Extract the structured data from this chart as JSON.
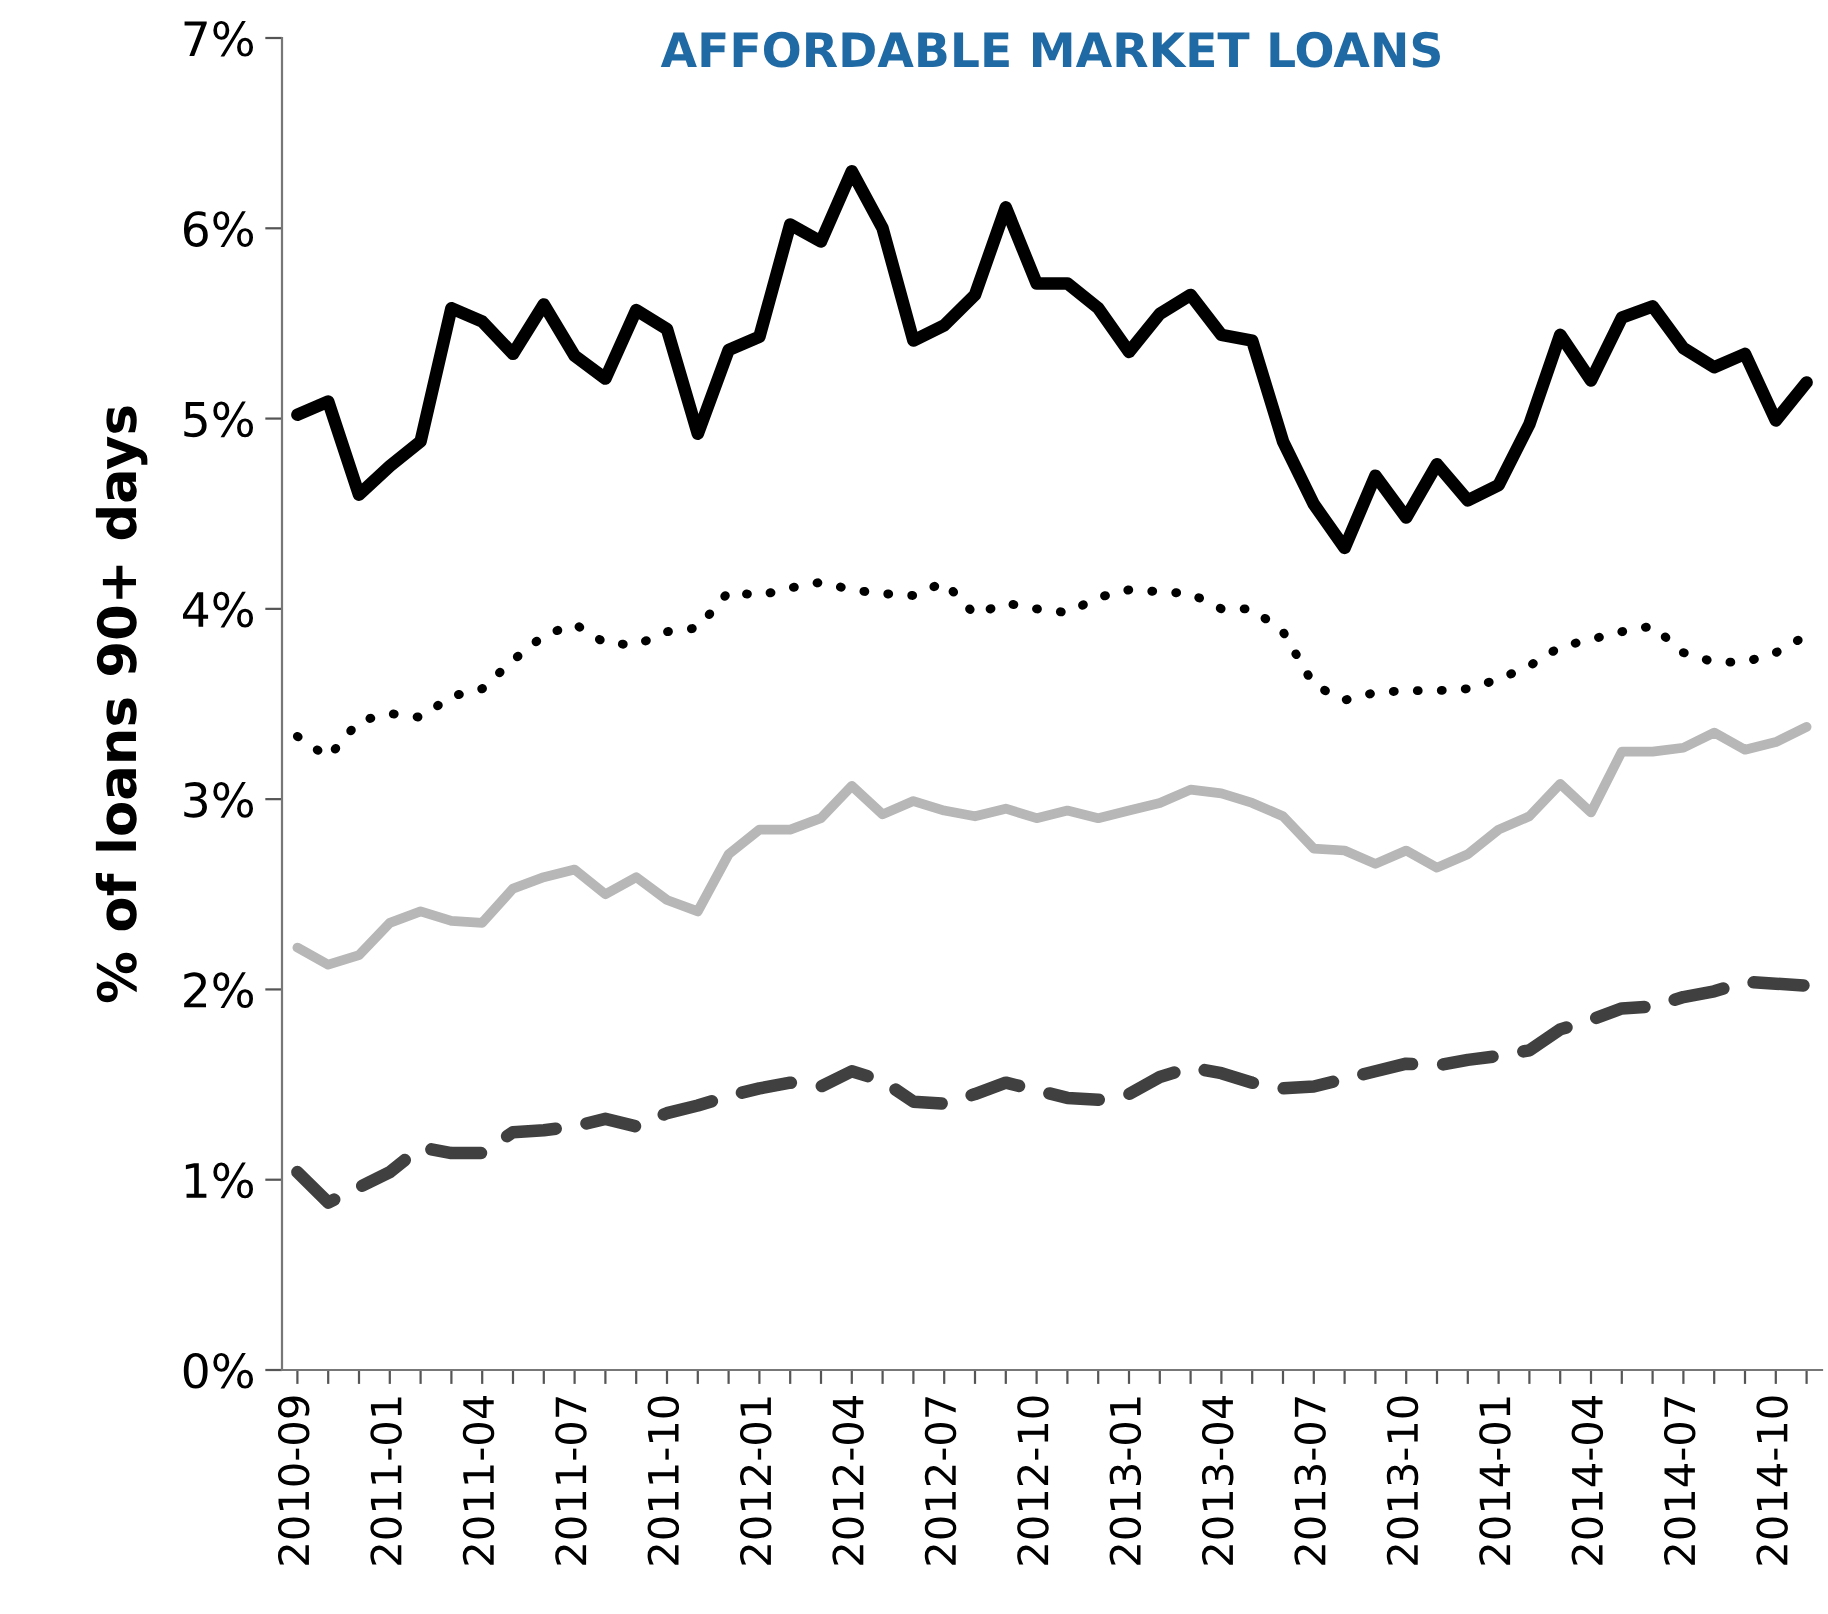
{
  "chart_data": {
    "type": "line",
    "title": "AFFORDABLE MARKET LOANS",
    "ylabel": "% of loans 90+ days",
    "categories": [
      "2010-09",
      null,
      null,
      "2011-01",
      null,
      null,
      "2011-04",
      null,
      null,
      "2011-07",
      null,
      null,
      "2011-10",
      null,
      null,
      "2012-01",
      null,
      null,
      "2012-04",
      null,
      null,
      "2012-07",
      null,
      null,
      "2012-10",
      null,
      null,
      "2013-01",
      null,
      null,
      "2013-04",
      null,
      null,
      "2013-07",
      null,
      null,
      "2013-10",
      null,
      null,
      "2014-01",
      null,
      null,
      "2014-04",
      null,
      null,
      "2014-07",
      null,
      null,
      "2014-10",
      null
    ],
    "series": [
      {
        "color": "#000000",
        "line_style": "solid",
        "values": [
          5.02,
          5.09,
          4.6,
          4.75,
          4.88,
          5.58,
          5.51,
          5.34,
          5.6,
          5.33,
          5.21,
          5.57,
          5.47,
          4.92,
          5.36,
          5.43,
          6.02,
          5.93,
          6.3,
          6.0,
          5.41,
          5.49,
          5.65,
          6.11,
          5.71,
          5.71,
          5.58,
          5.35,
          5.55,
          5.65,
          5.44,
          5.41,
          4.88,
          4.55,
          4.32,
          4.7,
          4.48,
          4.76,
          4.57,
          4.65,
          4.97,
          5.44,
          5.2,
          5.53,
          5.59,
          5.37,
          5.27,
          5.34,
          4.99,
          5.19
        ]
      },
      {
        "color": "#000000",
        "line_style": "dotted",
        "values": [
          3.33,
          3.22,
          3.41,
          3.45,
          3.43,
          3.54,
          3.58,
          3.73,
          3.86,
          3.92,
          3.82,
          3.81,
          3.88,
          3.9,
          4.09,
          4.07,
          4.11,
          4.14,
          4.1,
          4.08,
          4.07,
          4.14,
          3.97,
          4.03,
          4.0,
          3.98,
          4.06,
          4.1,
          4.09,
          4.08,
          4.0,
          4.0,
          3.88,
          3.6,
          3.52,
          3.56,
          3.57,
          3.57,
          3.58,
          3.63,
          3.7,
          3.8,
          3.84,
          3.88,
          3.91,
          3.77,
          3.72,
          3.72,
          3.77,
          3.86
        ]
      },
      {
        "color": "#b7b7b7",
        "line_style": "solid",
        "values": [
          2.22,
          2.13,
          2.18,
          2.35,
          2.41,
          2.36,
          2.35,
          2.53,
          2.59,
          2.63,
          2.5,
          2.59,
          2.47,
          2.41,
          2.71,
          2.84,
          2.84,
          2.9,
          3.07,
          2.92,
          2.99,
          2.94,
          2.91,
          2.95,
          2.9,
          2.94,
          2.9,
          2.94,
          2.98,
          3.05,
          3.03,
          2.98,
          2.91,
          2.74,
          2.73,
          2.66,
          2.73,
          2.64,
          2.71,
          2.84,
          2.91,
          3.08,
          2.93,
          3.25,
          3.25,
          3.27,
          3.35,
          3.26,
          3.3,
          3.38
        ]
      },
      {
        "color": "#404040",
        "line_style": "dashed",
        "values": [
          1.04,
          0.88,
          0.96,
          1.04,
          1.17,
          1.14,
          1.14,
          1.25,
          1.26,
          1.28,
          1.32,
          1.28,
          1.35,
          1.39,
          1.44,
          1.48,
          1.51,
          1.49,
          1.57,
          1.52,
          1.41,
          1.4,
          1.45,
          1.51,
          1.47,
          1.43,
          1.42,
          1.45,
          1.54,
          1.59,
          1.56,
          1.51,
          1.48,
          1.49,
          1.53,
          1.57,
          1.61,
          1.6,
          1.63,
          1.65,
          1.68,
          1.79,
          1.84,
          1.9,
          1.91,
          1.96,
          1.99,
          2.04,
          2.03,
          2.02
        ]
      }
    ],
    "ylim": [
      0,
      7
    ],
    "yticks": [
      {
        "value": 0,
        "label": "0%"
      },
      {
        "value": 1,
        "label": "1%"
      },
      {
        "value": 2,
        "label": "2%"
      },
      {
        "value": 3,
        "label": "3%"
      },
      {
        "value": 4,
        "label": "4%"
      },
      {
        "value": 5,
        "label": "5%"
      },
      {
        "value": 6,
        "label": "6%"
      },
      {
        "value": 7,
        "label": "7%"
      }
    ],
    "grid": false,
    "marker": "none"
  }
}
